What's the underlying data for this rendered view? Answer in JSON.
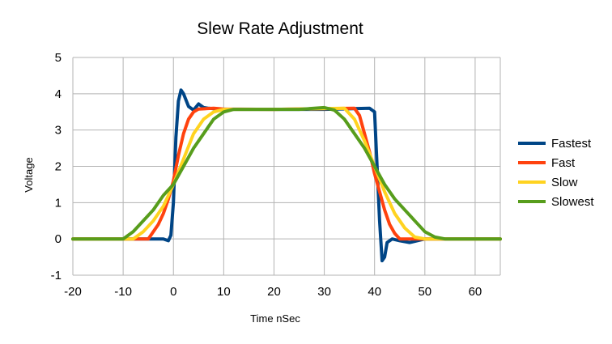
{
  "chart_data": {
    "type": "line",
    "title": "Slew Rate Adjustment",
    "xlabel": "Time nSec",
    "ylabel": "Voltage",
    "xlim": [
      -20,
      65
    ],
    "ylim": [
      -1,
      5
    ],
    "x_ticks": [
      "-20",
      "-10",
      "0",
      "10",
      "20",
      "30",
      "40",
      "50",
      "60"
    ],
    "y_ticks": [
      "-1",
      "0",
      "1",
      "2",
      "3",
      "4",
      "5"
    ],
    "grid": true,
    "legend_position": "right",
    "series": [
      {
        "name": "Fastest",
        "color": "#004586",
        "points": [
          [
            -20,
            0
          ],
          [
            -5,
            0
          ],
          [
            -2,
            0
          ],
          [
            -1,
            -0.05
          ],
          [
            -0.5,
            0.1
          ],
          [
            0,
            1.0
          ],
          [
            0.5,
            2.8
          ],
          [
            1,
            3.8
          ],
          [
            1.5,
            4.1
          ],
          [
            2,
            4.0
          ],
          [
            3,
            3.65
          ],
          [
            4,
            3.55
          ],
          [
            5,
            3.72
          ],
          [
            6,
            3.62
          ],
          [
            7,
            3.6
          ],
          [
            9,
            3.58
          ],
          [
            12,
            3.57
          ],
          [
            20,
            3.57
          ],
          [
            30,
            3.57
          ],
          [
            39,
            3.6
          ],
          [
            40,
            3.5
          ],
          [
            40.5,
            2.0
          ],
          [
            41,
            0.5
          ],
          [
            41.5,
            -0.6
          ],
          [
            42,
            -0.5
          ],
          [
            42.5,
            -0.1
          ],
          [
            43.5,
            0.0
          ],
          [
            45,
            -0.05
          ],
          [
            47,
            -0.1
          ],
          [
            50,
            0
          ],
          [
            65,
            0
          ]
        ]
      },
      {
        "name": "Fast",
        "color": "#ff420e",
        "points": [
          [
            -20,
            0
          ],
          [
            -5,
            0
          ],
          [
            -4,
            0.2
          ],
          [
            -3,
            0.4
          ],
          [
            -2,
            0.7
          ],
          [
            -1,
            1.1
          ],
          [
            0,
            1.6
          ],
          [
            1,
            2.3
          ],
          [
            2,
            2.9
          ],
          [
            3,
            3.3
          ],
          [
            4,
            3.5
          ],
          [
            5,
            3.58
          ],
          [
            8,
            3.6
          ],
          [
            10,
            3.58
          ],
          [
            20,
            3.57
          ],
          [
            36,
            3.6
          ],
          [
            37,
            3.4
          ],
          [
            38,
            2.9
          ],
          [
            39,
            2.4
          ],
          [
            40,
            1.8
          ],
          [
            41,
            1.3
          ],
          [
            42,
            0.8
          ],
          [
            43,
            0.4
          ],
          [
            44,
            0.15
          ],
          [
            45,
            0
          ],
          [
            65,
            0
          ]
        ]
      },
      {
        "name": "Slow",
        "color": "#ffd320",
        "points": [
          [
            -20,
            0
          ],
          [
            -8,
            0
          ],
          [
            -6,
            0.2
          ],
          [
            -4,
            0.5
          ],
          [
            -2,
            0.9
          ],
          [
            0,
            1.5
          ],
          [
            2,
            2.2
          ],
          [
            4,
            2.9
          ],
          [
            6,
            3.3
          ],
          [
            8,
            3.5
          ],
          [
            10,
            3.57
          ],
          [
            20,
            3.57
          ],
          [
            34,
            3.6
          ],
          [
            36,
            3.3
          ],
          [
            38,
            2.7
          ],
          [
            40,
            2.0
          ],
          [
            42,
            1.3
          ],
          [
            44,
            0.7
          ],
          [
            46,
            0.3
          ],
          [
            48,
            0.05
          ],
          [
            50,
            0
          ],
          [
            65,
            0
          ]
        ]
      },
      {
        "name": "Slowest",
        "color": "#579d1c",
        "points": [
          [
            -20,
            0
          ],
          [
            -10,
            0
          ],
          [
            -8,
            0.2
          ],
          [
            -6,
            0.5
          ],
          [
            -4,
            0.8
          ],
          [
            -2,
            1.2
          ],
          [
            0,
            1.5
          ],
          [
            2,
            2.0
          ],
          [
            4,
            2.5
          ],
          [
            6,
            2.9
          ],
          [
            8,
            3.3
          ],
          [
            10,
            3.5
          ],
          [
            12,
            3.57
          ],
          [
            25,
            3.57
          ],
          [
            30,
            3.62
          ],
          [
            32,
            3.55
          ],
          [
            34,
            3.3
          ],
          [
            36,
            2.9
          ],
          [
            38,
            2.5
          ],
          [
            40,
            2.0
          ],
          [
            42,
            1.5
          ],
          [
            44,
            1.1
          ],
          [
            46,
            0.8
          ],
          [
            48,
            0.5
          ],
          [
            50,
            0.2
          ],
          [
            52,
            0.05
          ],
          [
            54,
            0
          ],
          [
            65,
            0
          ]
        ]
      }
    ]
  }
}
